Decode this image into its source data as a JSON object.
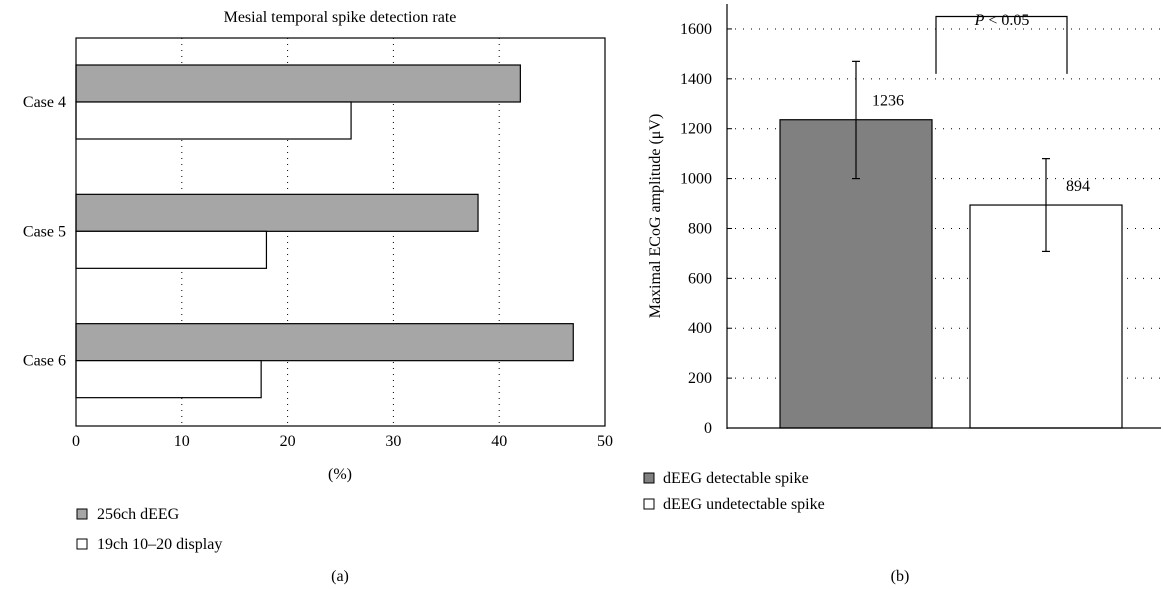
{
  "chart_data": [
    {
      "type": "bar",
      "orientation": "horizontal",
      "title": "Mesial temporal spike detection rate",
      "xlabel": "(%)",
      "ylabel": "",
      "categories": [
        "Case 4",
        "Case 5",
        "Case 6"
      ],
      "series": [
        {
          "name": "256ch dEEG",
          "values": [
            42,
            38,
            47
          ],
          "color": "#a6a6a6"
        },
        {
          "name": "19ch 10–20 display",
          "values": [
            26,
            18,
            17.5
          ],
          "color": "#ffffff"
        }
      ],
      "xlim": [
        0,
        50
      ],
      "xticks": [
        "0",
        "10",
        "20",
        "30",
        "40",
        "50"
      ],
      "grid": "vertical dotted",
      "legend": "bottom-left",
      "panel_label": "(a)"
    },
    {
      "type": "bar",
      "orientation": "vertical",
      "title": "",
      "ylabel": "Maximal ECoG amplitude (μV)",
      "xlabel": "",
      "categories": [
        "dEEG detectable spike",
        "dEEG undetectable spike"
      ],
      "values": [
        1236,
        894
      ],
      "value_labels": [
        "1236",
        "894"
      ],
      "errors": [
        [
          1000,
          1470
        ],
        [
          708,
          1080
        ]
      ],
      "colors": [
        "#808080",
        "#ffffff"
      ],
      "ylim": [
        0,
        1700
      ],
      "yticks": [
        "0",
        "200",
        "400",
        "600",
        "800",
        "1000",
        "1200",
        "1400",
        "1600"
      ],
      "grid": "horizontal dotted",
      "significance": {
        "p_label": "P",
        "p_rest": " < 0.05",
        "bracket_top": 1650,
        "bracket_left": 1420,
        "bracket_right": 1420
      },
      "legend": "bottom-left",
      "panel_label": "(b)"
    }
  ]
}
